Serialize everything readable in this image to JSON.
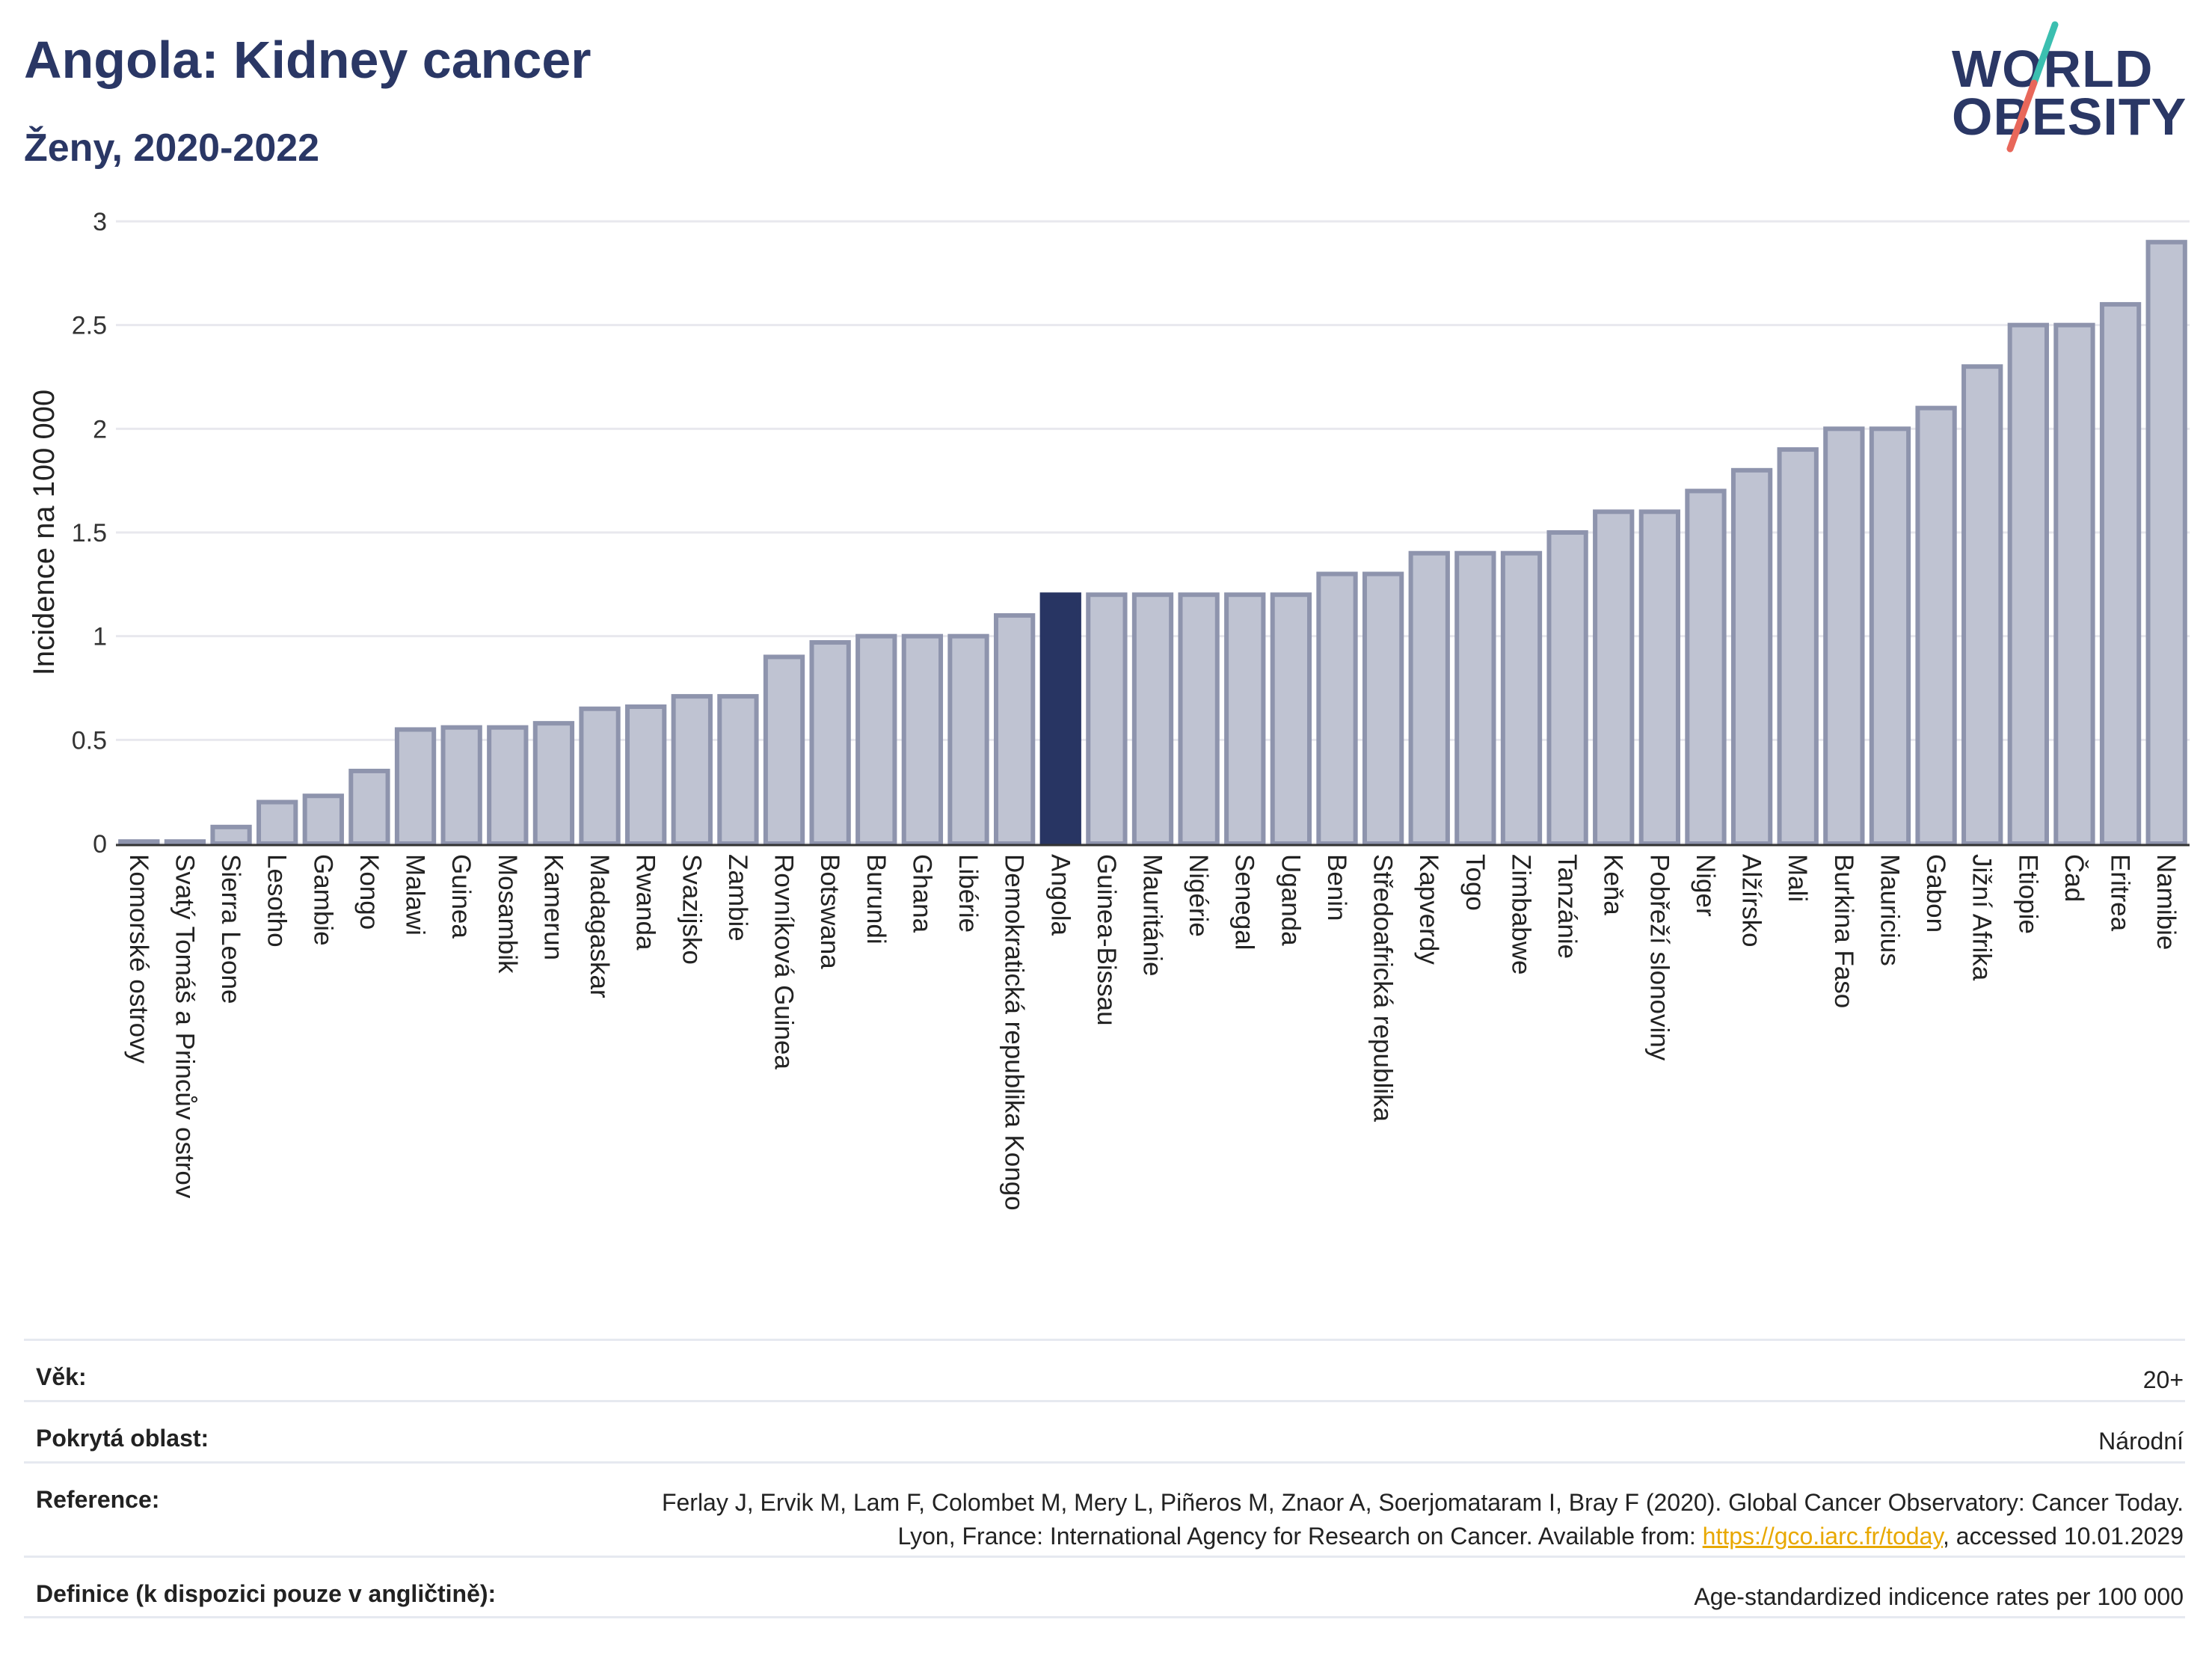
{
  "header": {
    "title": "Angola: Kidney cancer",
    "subtitle": "Ženy, 2020-2022"
  },
  "logo": {
    "line1": "WORLD",
    "line2": "OBESITY",
    "slash_colors": [
      "#3bbfb0",
      "#e8675a"
    ]
  },
  "chart_data": {
    "type": "bar",
    "ylabel": "Incidence na 100 000",
    "ylim": [
      0,
      3
    ],
    "yticks": [
      0,
      0.5,
      1,
      1.5,
      2,
      2.5,
      3
    ],
    "ytick_labels": [
      "0",
      "0.5",
      "1",
      "1.5",
      "2",
      "2.5",
      "3"
    ],
    "grid": true,
    "highlight": "Angola",
    "colors": {
      "bar": "#bfc3d2",
      "bar_edge": "#8e94ad",
      "highlight": "#283563",
      "grid": "#e8e8ee",
      "axis": "#333333"
    },
    "categories": [
      "Komorské ostrovy",
      "Svatý Tomáš a Princův ostrov",
      "Sierra Leone",
      "Lesotho",
      "Gambie",
      "Kongo",
      "Malawi",
      "Guinea",
      "Mosambik",
      "Kamerun",
      "Madagaskar",
      "Rwanda",
      "Svazijsko",
      "Zambie",
      "Rovníková Guinea",
      "Botswana",
      "Burundi",
      "Ghana",
      "Libérie",
      "Demokratická republika Kongo",
      "Angola",
      "Guinea-Bissau",
      "Mauritánie",
      "Nigérie",
      "Senegal",
      "Uganda",
      "Benin",
      "Středoafrická republika",
      "Kapverdy",
      "Togo",
      "Zimbabwe",
      "Tanzánie",
      "Keňa",
      "Pobřeží slonoviny",
      "Niger",
      "Alžírsko",
      "Mali",
      "Burkina Faso",
      "Mauricius",
      "Gabon",
      "Jižní Afrika",
      "Etiopie",
      "Čad",
      "Eritrea",
      "Namibie"
    ],
    "values": [
      0.01,
      0.01,
      0.08,
      0.2,
      0.23,
      0.35,
      0.55,
      0.56,
      0.56,
      0.58,
      0.65,
      0.66,
      0.71,
      0.71,
      0.9,
      0.97,
      1.0,
      1.0,
      1.0,
      1.1,
      1.2,
      1.2,
      1.2,
      1.2,
      1.2,
      1.2,
      1.3,
      1.3,
      1.4,
      1.4,
      1.4,
      1.5,
      1.6,
      1.6,
      1.7,
      1.8,
      1.9,
      2.0,
      2.0,
      2.1,
      2.3,
      2.5,
      2.5,
      2.6,
      2.9
    ]
  },
  "meta": {
    "age_label": "Věk:",
    "age_value": "20+",
    "coverage_label": "Pokrytá oblast:",
    "coverage_value": "Národní",
    "reference_label": "Reference:",
    "reference_text_1": "Ferlay J, Ervik M, Lam F, Colombet M, Mery L, Piñeros M, Znaor A, Soerjomataram I, Bray F (2020). Global Cancer Observatory: Cancer Today. Lyon, France: International Agency for Research on Cancer. Available from: ",
    "reference_link": "https://gco.iarc.fr/today",
    "reference_text_2": ", accessed 10.01.2029",
    "definition_label": "Definice (k dispozici pouze v angličtině):",
    "definition_value": "Age-standardized indicence rates per 100 000"
  }
}
